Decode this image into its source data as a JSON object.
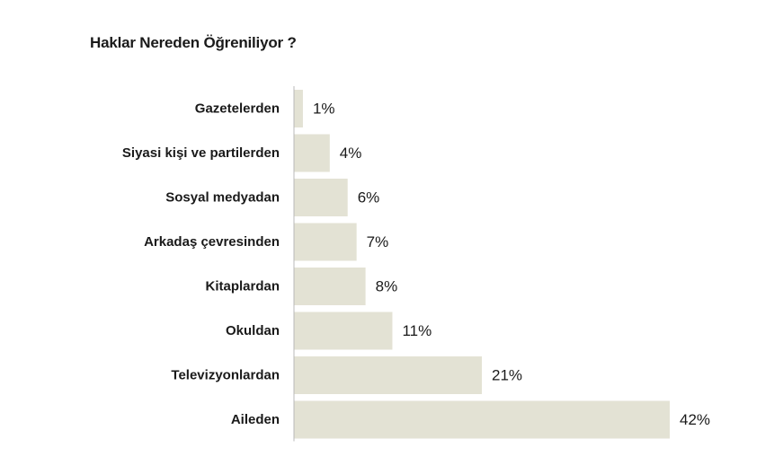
{
  "chart_data": {
    "type": "bar",
    "orientation": "horizontal",
    "title": "Haklar Nereden Öğreniliyor ?",
    "categories": [
      "Gazetelerden",
      "Siyasi kişi ve partilerden",
      "Sosyal medyadan",
      "Arkadaş çevresinden",
      "Kitaplardan",
      "Okuldan",
      "Televizyonlardan",
      "Aileden"
    ],
    "values": [
      1,
      4,
      6,
      7,
      8,
      11,
      21,
      42
    ],
    "value_labels": [
      "1%",
      "4%",
      "6%",
      "7%",
      "8%",
      "11%",
      "21%",
      "42%"
    ],
    "unit": "%",
    "xlim": [
      0,
      42
    ],
    "grid": false,
    "legend": "none",
    "bar_color": "#e3e2d4",
    "axis_color": "#b8b8b8"
  }
}
